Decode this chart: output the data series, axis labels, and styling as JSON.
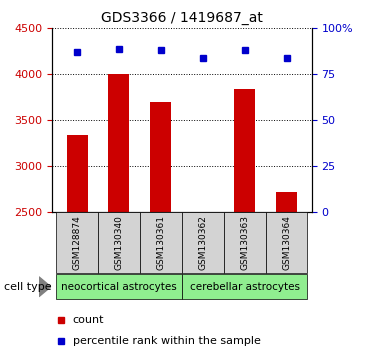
{
  "title": "GDS3366 / 1419687_at",
  "samples": [
    "GSM128874",
    "GSM130340",
    "GSM130361",
    "GSM130362",
    "GSM130363",
    "GSM130364"
  ],
  "counts": [
    3340,
    4005,
    3700,
    2480,
    3840,
    2720
  ],
  "percentiles": [
    87,
    89,
    88,
    84,
    88,
    84
  ],
  "ylim_left": [
    2500,
    4500
  ],
  "ylim_right": [
    0,
    100
  ],
  "yticks_left": [
    2500,
    3000,
    3500,
    4000,
    4500
  ],
  "yticks_right": [
    0,
    25,
    50,
    75,
    100
  ],
  "bar_color": "#cc0000",
  "dot_color": "#0000cc",
  "group1_label": "neocortical astrocytes",
  "group2_label": "cerebellar astrocytes",
  "group1_indices": [
    0,
    1,
    2
  ],
  "group2_indices": [
    3,
    4,
    5
  ],
  "group_color": "#90ee90",
  "cell_type_label": "cell type",
  "legend_count_label": "count",
  "legend_pct_label": "percentile rank within the sample",
  "bar_width": 0.5,
  "tick_label_color_left": "#cc0000",
  "tick_label_color_right": "#0000cc",
  "xlabel_bg": "#d3d3d3"
}
